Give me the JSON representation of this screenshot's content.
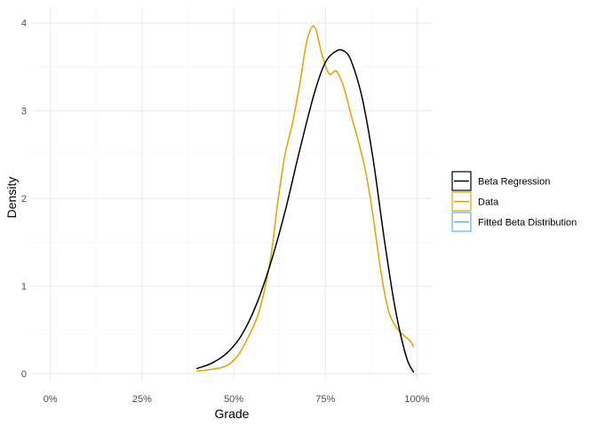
{
  "chart_data": {
    "type": "line",
    "xlabel": "Grade",
    "ylabel": "Density",
    "xlim": [
      -0.05,
      1.04
    ],
    "ylim": [
      -0.08,
      4.18
    ],
    "x_ticks": [
      {
        "value": 0,
        "label": "0%"
      },
      {
        "value": 0.25,
        "label": "25%"
      },
      {
        "value": 0.5,
        "label": "50%"
      },
      {
        "value": 0.75,
        "label": "75%"
      },
      {
        "value": 1.0,
        "label": "100%"
      }
    ],
    "y_ticks": [
      {
        "value": 0,
        "label": "0"
      },
      {
        "value": 1,
        "label": "1"
      },
      {
        "value": 2,
        "label": "2"
      },
      {
        "value": 3,
        "label": "3"
      },
      {
        "value": 4,
        "label": "4"
      }
    ],
    "grid": true,
    "legend_position": "right",
    "series": [
      {
        "name": "Beta Regression",
        "color": "#000000",
        "points": [
          [
            0.4,
            0.06
          ],
          [
            0.44,
            0.12
          ],
          [
            0.48,
            0.23
          ],
          [
            0.52,
            0.43
          ],
          [
            0.56,
            0.77
          ],
          [
            0.6,
            1.25
          ],
          [
            0.64,
            1.85
          ],
          [
            0.68,
            2.55
          ],
          [
            0.72,
            3.2
          ],
          [
            0.75,
            3.55
          ],
          [
            0.78,
            3.68
          ],
          [
            0.8,
            3.68
          ],
          [
            0.82,
            3.57
          ],
          [
            0.85,
            3.15
          ],
          [
            0.88,
            2.45
          ],
          [
            0.91,
            1.55
          ],
          [
            0.94,
            0.75
          ],
          [
            0.97,
            0.2
          ],
          [
            0.99,
            0.02
          ]
        ]
      },
      {
        "name": "Data",
        "color": "#e69f00",
        "points": [
          [
            0.4,
            0.03
          ],
          [
            0.44,
            0.05
          ],
          [
            0.48,
            0.09
          ],
          [
            0.51,
            0.2
          ],
          [
            0.54,
            0.42
          ],
          [
            0.57,
            0.72
          ],
          [
            0.6,
            1.3
          ],
          [
            0.62,
            1.95
          ],
          [
            0.64,
            2.5
          ],
          [
            0.66,
            2.85
          ],
          [
            0.68,
            3.3
          ],
          [
            0.7,
            3.8
          ],
          [
            0.72,
            3.96
          ],
          [
            0.74,
            3.65
          ],
          [
            0.76,
            3.42
          ],
          [
            0.78,
            3.45
          ],
          [
            0.8,
            3.27
          ],
          [
            0.82,
            2.95
          ],
          [
            0.84,
            2.65
          ],
          [
            0.86,
            2.3
          ],
          [
            0.88,
            1.8
          ],
          [
            0.9,
            1.2
          ],
          [
            0.92,
            0.75
          ],
          [
            0.94,
            0.55
          ],
          [
            0.96,
            0.45
          ],
          [
            0.98,
            0.38
          ],
          [
            0.99,
            0.31
          ]
        ]
      },
      {
        "name": "Fitted Beta Distribution",
        "color": "#56b4e9",
        "points": []
      }
    ]
  }
}
